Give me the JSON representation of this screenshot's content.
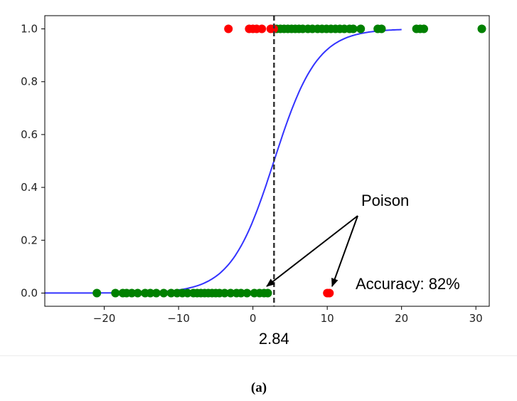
{
  "chart_data": {
    "type": "scatter",
    "xlim": [
      -28,
      31.8
    ],
    "ylim": [
      -0.05,
      1.05
    ],
    "x_ticks": [
      -20,
      -10,
      0,
      10,
      20,
      30
    ],
    "x_tick_labels": [
      "−20",
      "−10",
      "0",
      "10",
      "20",
      "30"
    ],
    "y_ticks": [
      0.0,
      0.2,
      0.4,
      0.6,
      0.8,
      1.0
    ],
    "y_tick_labels": [
      "0.0",
      "0.2",
      "0.4",
      "0.6",
      "0.8",
      "1.0"
    ],
    "grid": false,
    "series": [
      {
        "color": "#008000",
        "points": [
          [
            -21,
            0
          ],
          [
            -18.5,
            0
          ],
          [
            -17.5,
            0
          ],
          [
            -17,
            0
          ],
          [
            -16.3,
            0
          ],
          [
            -15.5,
            0
          ],
          [
            -14.5,
            0
          ],
          [
            -13.8,
            0
          ],
          [
            -13,
            0
          ],
          [
            -12,
            0
          ],
          [
            -11,
            0
          ],
          [
            -10.2,
            0
          ],
          [
            -9.5,
            0
          ],
          [
            -8.8,
            0
          ],
          [
            -8,
            0
          ],
          [
            -7.5,
            0
          ],
          [
            -7,
            0
          ],
          [
            -6.5,
            0
          ],
          [
            -6,
            0
          ],
          [
            -5.5,
            0
          ],
          [
            -5,
            0
          ],
          [
            -4.5,
            0
          ],
          [
            -3.8,
            0
          ],
          [
            -3,
            0
          ],
          [
            -2.2,
            0
          ],
          [
            -1.6,
            0
          ],
          [
            -0.8,
            0
          ],
          [
            0.2,
            0
          ],
          [
            0.9,
            0
          ],
          [
            1.5,
            0
          ],
          [
            2.0,
            0
          ],
          [
            3.2,
            1
          ],
          [
            3.7,
            1
          ],
          [
            4.2,
            1
          ],
          [
            4.7,
            1
          ],
          [
            5.2,
            1
          ],
          [
            5.7,
            1
          ],
          [
            6.2,
            1
          ],
          [
            6.7,
            1
          ],
          [
            7.4,
            1
          ],
          [
            8.0,
            1
          ],
          [
            8.7,
            1
          ],
          [
            9.3,
            1
          ],
          [
            9.9,
            1
          ],
          [
            10.5,
            1
          ],
          [
            11.1,
            1
          ],
          [
            11.7,
            1
          ],
          [
            12.3,
            1
          ],
          [
            13,
            1
          ],
          [
            13.5,
            1
          ],
          [
            14.5,
            1
          ],
          [
            16.8,
            1
          ],
          [
            17.3,
            1
          ],
          [
            22,
            1
          ],
          [
            22.5,
            1
          ],
          [
            23,
            1
          ],
          [
            30.8,
            1
          ]
        ]
      },
      {
        "color": "#ff0000",
        "points": [
          [
            -3.3,
            1
          ],
          [
            -0.5,
            1
          ],
          [
            0.0,
            1
          ],
          [
            0.5,
            1
          ],
          [
            1.2,
            1
          ],
          [
            2.4,
            1
          ],
          [
            2.8,
            1
          ],
          [
            10.0,
            0
          ],
          [
            10.3,
            0
          ]
        ]
      }
    ],
    "curve": {
      "color": "#3333ff",
      "x_range": [
        -28,
        20.0
      ],
      "center": 2.84,
      "scale": 2.9
    },
    "threshold": {
      "x": 2.84,
      "label": "2.84"
    },
    "annotations": {
      "poison": "Poison",
      "accuracy": "Accuracy: 82%"
    }
  },
  "caption": "(a)"
}
